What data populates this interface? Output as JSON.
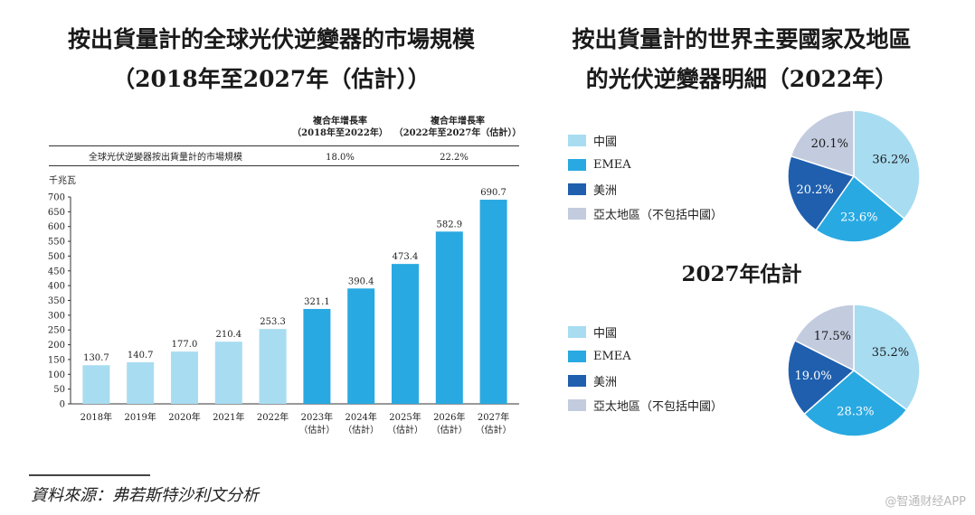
{
  "titles": {
    "left_line1": "按出貨量計的全球光伏逆變器的市場規模",
    "left_line2": "（2018年至2027年（估計））",
    "right_line1": "按出貨量計的世界主要國家及地區",
    "right_line2": "的光伏逆變器明細（2022年）",
    "right_sub": "2027年估計"
  },
  "cagr": {
    "head1_line1": "複合年增長率",
    "head1_line2": "（2018年至2022年）",
    "head2_line1": "複合年增長率",
    "head2_line2": "（2022年至2027年（估計））",
    "row_label": "全球光伏逆變器按出貨量計的市場規模",
    "val1": "18.0%",
    "val2": "22.2%"
  },
  "colors": {
    "bar_light": "#a8dcf1",
    "bar_dark": "#29a9e1",
    "china": "#a8dcf1",
    "emea": "#29a9e1",
    "americas": "#1f5fae",
    "apac": "#c3cbdf"
  },
  "legend": [
    "中國",
    "EMEA",
    "美洲",
    "亞太地區（不包括中國）"
  ],
  "source": "資料來源：弗若斯特沙利文分析",
  "watermark": "@智通财经APP",
  "chart_data": [
    {
      "type": "bar",
      "title": "按出貨量計的全球光伏逆變器的市場規模（2018年至2027年（估計））",
      "ylabel": "千兆瓦",
      "xlabel": "",
      "ylim": [
        0,
        700
      ],
      "yticks": [
        0,
        50,
        100,
        150,
        200,
        250,
        300,
        350,
        400,
        450,
        500,
        550,
        600,
        650,
        700
      ],
      "categories": [
        "2018年",
        "2019年",
        "2020年",
        "2021年",
        "2022年",
        "2023年",
        "2024年",
        "2025年",
        "2026年",
        "2027年"
      ],
      "category_notes": [
        "",
        "",
        "",
        "",
        "",
        "（估計）",
        "（估計）",
        "（估計）",
        "（估計）",
        "（估計）"
      ],
      "values": [
        130.7,
        140.7,
        177.0,
        210.4,
        253.3,
        321.1,
        390.4,
        473.4,
        582.9,
        690.7
      ],
      "value_labels": [
        "130.7",
        "140.7",
        "177.0",
        "210.4",
        "253.3",
        "321.1",
        "390.4",
        "473.4",
        "582.9",
        "690.7"
      ],
      "estimated": [
        false,
        false,
        false,
        false,
        false,
        true,
        true,
        true,
        true,
        true
      ]
    },
    {
      "type": "pie",
      "title": "2022年",
      "labels": [
        "中國",
        "EMEA",
        "美洲",
        "亞太地區（不包括中國）"
      ],
      "values": [
        36.2,
        23.6,
        20.2,
        20.1
      ],
      "value_labels": [
        "36.2%",
        "23.6%",
        "20.2%",
        "20.1%"
      ]
    },
    {
      "type": "pie",
      "title": "2027年估計",
      "labels": [
        "中國",
        "EMEA",
        "美洲",
        "亞太地區（不包括中國）"
      ],
      "values": [
        35.2,
        28.3,
        19.0,
        17.5
      ],
      "value_labels": [
        "35.2%",
        "28.3%",
        "19.0%",
        "17.5%"
      ]
    }
  ]
}
